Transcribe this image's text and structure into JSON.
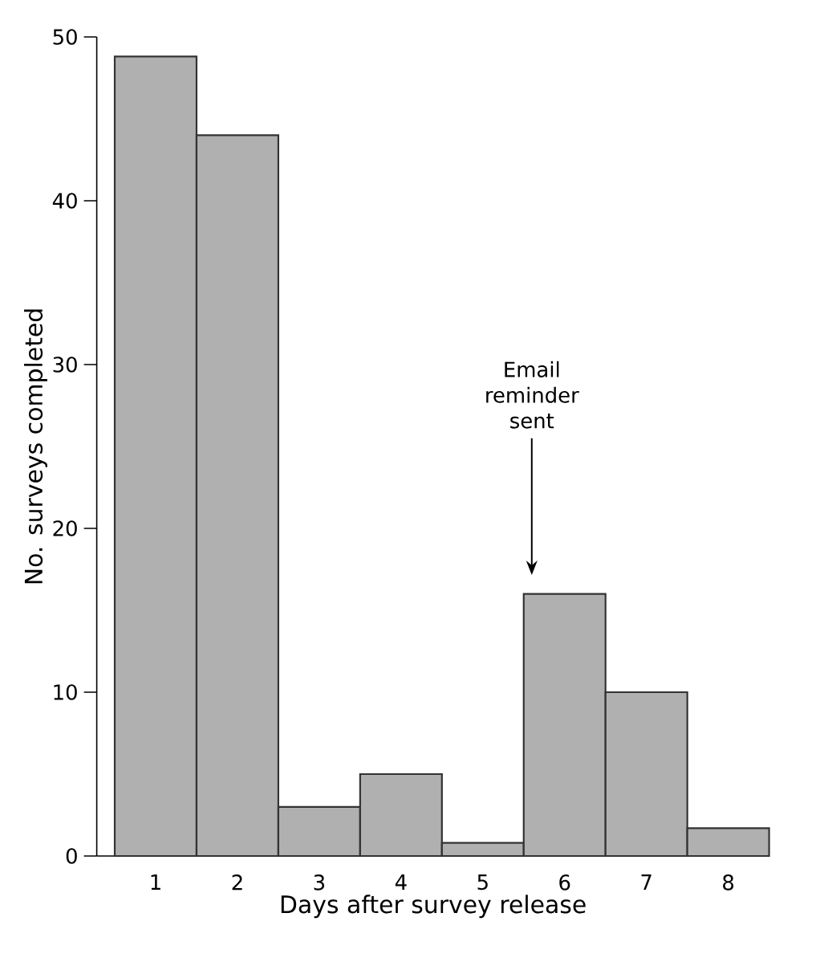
{
  "chart_data": {
    "type": "bar",
    "categories": [
      "1",
      "2",
      "3",
      "4",
      "5",
      "6",
      "7",
      "8"
    ],
    "values": [
      48.8,
      44,
      3,
      5,
      0.8,
      16,
      10,
      1.7
    ],
    "color": "#b0b0b0",
    "xlabel": "Days after survey release",
    "ylabel": "No. surveys completed",
    "ylim": [
      0,
      50
    ],
    "yticks": [
      0,
      10,
      20,
      30,
      40,
      50
    ],
    "annotations": [
      "Email reminder sent"
    ]
  }
}
